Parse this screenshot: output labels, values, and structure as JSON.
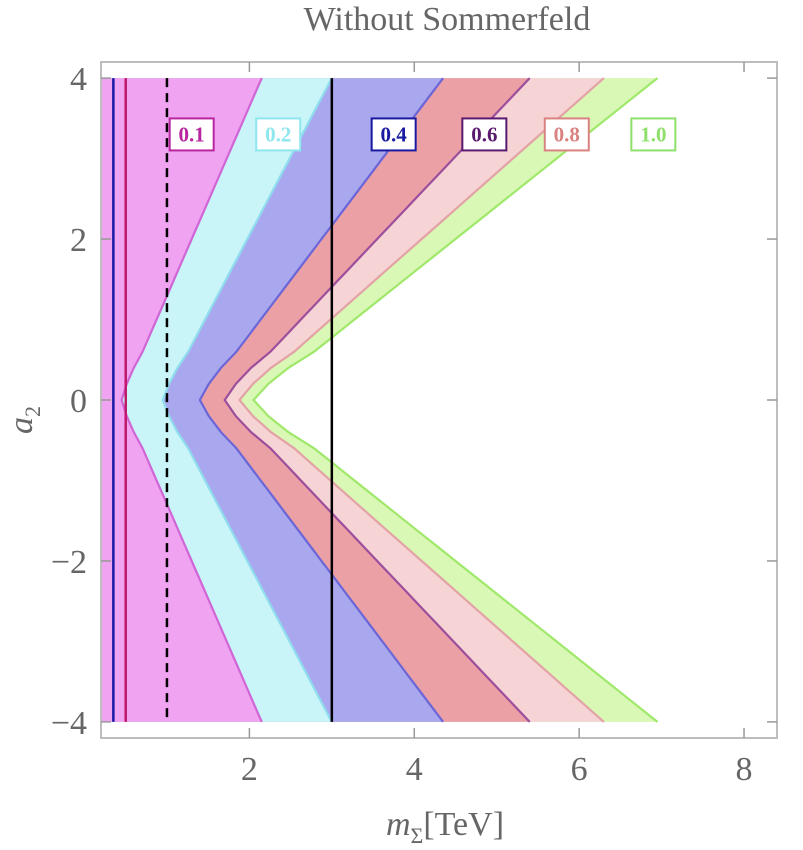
{
  "chart_data": {
    "type": "area",
    "title": "Without Sommerfeld",
    "xlabel": "m_Σ[TeV]",
    "xlabel_parts": {
      "var": "m",
      "sub": "Σ",
      "unit": "[TeV]"
    },
    "ylabel": "a_2",
    "ylabel_parts": {
      "var": "a",
      "sub": "2"
    },
    "xlim": [
      0.2,
      8.4
    ],
    "ylim": [
      -4.2,
      4.2
    ],
    "x_ticks": [
      2,
      4,
      6,
      8
    ],
    "x_tick_labels": [
      "2",
      "4",
      "6",
      "8"
    ],
    "y_ticks": [
      -4,
      -2,
      0,
      2,
      4
    ],
    "y_tick_labels": [
      "−4",
      "−2",
      "0",
      "2",
      "4"
    ],
    "grid": false,
    "legend_position": "top",
    "contours": [
      {
        "label": "0.1",
        "fill": "#f0a3f0",
        "line": "#d066d6",
        "label_color": "#b8259e",
        "x_ymax": 2.15,
        "x_ymin": 0.45
      },
      {
        "label": "0.2",
        "fill": "#c9f5f8",
        "line": "#8fdcee",
        "label_color": "#8ee6ee",
        "x_ymax": 3.0,
        "x_ymin": 0.95
      },
      {
        "label": "0.4",
        "fill": "#a9a7ee",
        "line": "#6a66d8",
        "label_color": "#1a1aa0",
        "x_ymax": 4.35,
        "x_ymin": 1.4
      },
      {
        "label": "0.6",
        "fill": "#eba0a6",
        "line": "#9c4e9c",
        "label_color": "#5a1a6e",
        "x_ymax": 5.4,
        "x_ymin": 1.7
      },
      {
        "label": "0.8",
        "fill": "#f6d3d4",
        "line": "#e3a3a6",
        "label_color": "#d98280",
        "x_ymax": 6.3,
        "x_ymin": 1.88
      },
      {
        "label": "1.0",
        "fill": "#d9f7b5",
        "line": "#9fe86a",
        "label_color": "#8ee06a",
        "x_ymax": 6.95,
        "x_ymin": 2.05
      }
    ],
    "vertical_lines": [
      {
        "x": 0.35,
        "color": "#1a1aa8",
        "style": "solid"
      },
      {
        "x": 0.5,
        "color": "#c0186a",
        "style": "solid"
      },
      {
        "x": 1.0,
        "color": "#000000",
        "style": "dashed"
      },
      {
        "x": 3.0,
        "color": "#000000",
        "style": "solid"
      }
    ]
  }
}
